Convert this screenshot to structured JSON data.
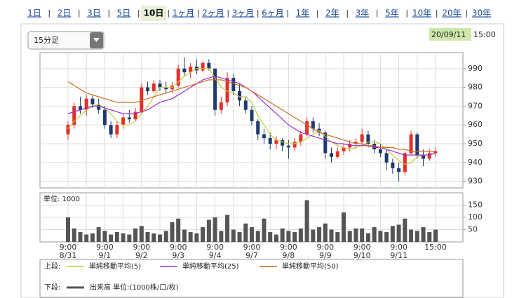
{
  "tabs": [
    "1日",
    "2日",
    "3日",
    "5日",
    "10日",
    "1ヶ月",
    "2ヶ月",
    "3ヶ月",
    "6ヶ月",
    "1年",
    "2年",
    "3年",
    "5年",
    "10年",
    "20年",
    "30年"
  ],
  "active_tab_index": 4,
  "interval_select": "15分足",
  "timestamp": {
    "date": "20/09/11",
    "time": "15:00"
  },
  "chart_data": [
    {
      "type": "candlestick",
      "legend_label": "上段:",
      "up_color": "#e0302a",
      "down_color": "#1f3a6e",
      "ylim": [
        926.5,
        998.5
      ],
      "yticks": [
        930,
        940,
        950,
        960,
        970,
        980,
        990
      ],
      "grid": true,
      "open": [
        955,
        960,
        970,
        968,
        974,
        971,
        968,
        960,
        955,
        960,
        964,
        963,
        967,
        980,
        978,
        982,
        980,
        979,
        981,
        990,
        988,
        991,
        989,
        993,
        990,
        968,
        972,
        985,
        978,
        973,
        968,
        962,
        955,
        953,
        950,
        952,
        949,
        948,
        951,
        955,
        962,
        958,
        956,
        945,
        943,
        946,
        948,
        950,
        951,
        955,
        950,
        947,
        945,
        940,
        937,
        935,
        945,
        955,
        944,
        942,
        945
      ],
      "high": [
        962,
        972,
        975,
        976,
        976,
        974,
        970,
        962,
        962,
        966,
        968,
        969,
        982,
        983,
        984,
        984,
        983,
        983,
        992,
        996,
        993,
        995,
        994,
        995,
        990,
        975,
        988,
        987,
        982,
        975,
        970,
        963,
        958,
        956,
        954,
        953,
        952,
        953,
        957,
        964,
        964,
        961,
        957,
        948,
        948,
        950,
        952,
        953,
        958,
        957,
        952,
        950,
        947,
        942,
        940,
        946,
        957,
        956,
        947,
        947,
        948
      ],
      "low": [
        952,
        958,
        966,
        965,
        969,
        966,
        958,
        953,
        953,
        958,
        961,
        962,
        966,
        976,
        977,
        978,
        977,
        977,
        980,
        986,
        985,
        987,
        988,
        989,
        965,
        966,
        970,
        976,
        970,
        966,
        960,
        952,
        950,
        947,
        947,
        946,
        942,
        946,
        949,
        954,
        956,
        954,
        942,
        940,
        942,
        944,
        946,
        947,
        949,
        948,
        945,
        943,
        936,
        934,
        930,
        933,
        944,
        942,
        938,
        941,
        943
      ],
      "close": [
        960,
        970,
        968,
        974,
        971,
        968,
        960,
        955,
        960,
        964,
        963,
        967,
        980,
        978,
        982,
        980,
        979,
        981,
        990,
        988,
        991,
        989,
        993,
        990,
        968,
        972,
        985,
        978,
        973,
        968,
        962,
        955,
        953,
        950,
        952,
        949,
        948,
        951,
        955,
        962,
        958,
        956,
        945,
        943,
        946,
        948,
        950,
        951,
        955,
        950,
        947,
        945,
        940,
        937,
        935,
        945,
        955,
        944,
        942,
        945,
        946
      ],
      "series": [
        {
          "name": "単純移動平均(5)",
          "color": "#c2cc3c",
          "values": [
            958,
            962,
            965,
            968,
            970,
            971,
            969,
            966,
            962,
            960,
            960,
            962,
            966,
            970,
            975,
            980,
            980,
            980,
            983,
            986,
            988,
            990,
            990,
            990,
            985,
            980,
            978,
            977,
            975,
            975,
            972,
            965,
            960,
            955,
            952,
            951,
            950,
            950,
            951,
            953,
            955,
            957,
            954,
            951,
            949,
            948,
            947,
            948,
            949,
            951,
            951,
            950,
            947,
            944,
            941,
            939,
            940,
            943,
            944,
            944,
            945
          ]
        },
        {
          "name": "単純移動平均(25)",
          "color": "#9b30c8",
          "values": [
            966,
            967,
            968,
            969,
            970,
            970,
            969,
            968,
            967,
            966,
            966,
            966,
            967,
            968,
            970,
            972,
            973,
            974,
            976,
            978,
            980,
            982,
            984,
            985,
            986,
            985,
            984,
            983,
            982,
            980,
            978,
            975,
            972,
            969,
            966,
            963,
            960,
            958,
            956,
            955,
            954,
            953,
            952,
            951,
            950,
            950,
            949,
            949,
            949,
            949,
            948,
            948,
            947,
            946,
            945,
            944,
            944,
            944,
            944,
            944,
            945
          ]
        },
        {
          "name": "単純移動平均(50)",
          "color": "#d2691e",
          "values": [
            983,
            981,
            979,
            977,
            976,
            975,
            974,
            973,
            972,
            972,
            972,
            972,
            973,
            974,
            975,
            976,
            977,
            978,
            979,
            980,
            981,
            982,
            983,
            984,
            984,
            984,
            983,
            982,
            981,
            980,
            978,
            976,
            974,
            972,
            970,
            968,
            966,
            964,
            962,
            960,
            958,
            956,
            955,
            954,
            953,
            952,
            951,
            950,
            950,
            949,
            949,
            948,
            948,
            948,
            947,
            947,
            946,
            946,
            946,
            946,
            946
          ]
        }
      ]
    },
    {
      "type": "bar",
      "legend_label": "下段:",
      "unit_label": "単位: 1000",
      "ylim": [
        0,
        200
      ],
      "yticks": [
        50,
        100,
        150
      ],
      "grid": true,
      "time_labels": [
        "9:00",
        null,
        null,
        null,
        null,
        null,
        "9:00",
        null,
        null,
        null,
        null,
        null,
        "9:00",
        null,
        null,
        null,
        null,
        null,
        "9:00",
        null,
        null,
        null,
        null,
        null,
        "9:00",
        null,
        null,
        null,
        null,
        null,
        "9:00",
        null,
        null,
        null,
        null,
        null,
        "9:00",
        null,
        null,
        null,
        null,
        null,
        "9:00",
        null,
        null,
        null,
        null,
        null,
        "9:00",
        null,
        null,
        null,
        null,
        null,
        "9:00",
        null,
        null,
        null,
        null,
        null,
        "15:00"
      ],
      "date_labels": [
        "8/31",
        null,
        null,
        null,
        null,
        null,
        "9/1",
        null,
        null,
        null,
        null,
        null,
        "9/2",
        null,
        null,
        null,
        null,
        null,
        "9/3",
        null,
        null,
        null,
        null,
        null,
        "9/4",
        null,
        null,
        null,
        null,
        null,
        "9/7",
        null,
        null,
        null,
        null,
        null,
        "9/8",
        null,
        null,
        null,
        null,
        null,
        "9/9",
        null,
        null,
        null,
        null,
        null,
        "9/10",
        null,
        null,
        null,
        null,
        null,
        "9/11",
        null,
        null,
        null,
        null,
        null,
        null
      ],
      "series": [
        {
          "name": "出来高 単位:(1000株/口/枚)",
          "color": "#555555",
          "values": [
            100,
            55,
            40,
            30,
            35,
            60,
            45,
            30,
            40,
            35,
            30,
            55,
            65,
            40,
            35,
            30,
            45,
            80,
            95,
            50,
            40,
            35,
            60,
            90,
            100,
            45,
            110,
            50,
            40,
            75,
            60,
            45,
            95,
            40,
            30,
            55,
            45,
            40,
            55,
            170,
            50,
            60,
            75,
            50,
            40,
            120,
            45,
            55,
            55,
            35,
            60,
            45,
            40,
            65,
            70,
            95,
            50,
            45,
            60,
            40,
            50
          ]
        }
      ]
    }
  ]
}
